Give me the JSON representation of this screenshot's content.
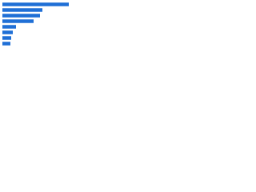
{
  "chart_data": {
    "type": "bar",
    "orientation": "horizontal",
    "categories": [
      null,
      null,
      null,
      null,
      null,
      null,
      null,
      null
    ],
    "values": [
      83,
      50,
      47,
      39,
      17,
      13,
      11,
      10
    ],
    "color": "#1f6fd6"
  }
}
